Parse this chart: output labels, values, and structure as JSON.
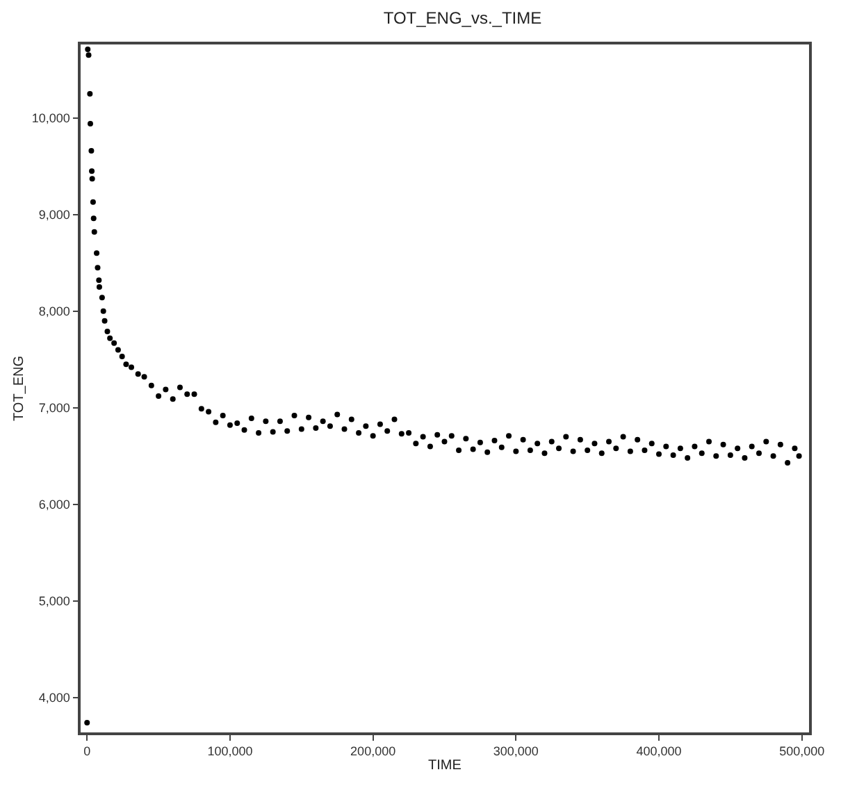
{
  "chart_data": {
    "type": "scatter",
    "title": "TOT_ENG_vs._TIME",
    "xlabel": "TIME",
    "ylabel": "TOT_ENG",
    "xlim": [
      -4500,
      505000
    ],
    "ylim": [
      3640,
      10760
    ],
    "xticks": [
      0,
      {
        "value": 100000,
        "label": "100,000"
      },
      {
        "value": 200000,
        "label": "200,000"
      },
      {
        "value": 300000,
        "label": "300,000"
      },
      {
        "value": 400000,
        "label": "400,000"
      },
      {
        "value": 500000,
        "label": "500,000"
      }
    ],
    "yticks": [
      {
        "value": 4000,
        "label": "4,000"
      },
      {
        "value": 5000,
        "label": "5,000"
      },
      {
        "value": 6000,
        "label": "6,000"
      },
      {
        "value": 7000,
        "label": "7,000"
      },
      {
        "value": 8000,
        "label": "8,000"
      },
      {
        "value": 9000,
        "label": "9,000"
      },
      {
        "value": 10000,
        "label": "10,000"
      }
    ],
    "marker": "circle",
    "series": [
      {
        "color": "#000000",
        "x": [
          0,
          500,
          1100,
          2000,
          2300,
          3000,
          3300,
          3600,
          4200,
          4600,
          5100,
          6700,
          7400,
          8300,
          8600,
          10500,
          11400,
          12300,
          14200,
          16000,
          18900,
          21700,
          24500,
          27300,
          31000,
          35700,
          40000,
          45000,
          50000,
          55000,
          60000,
          65000,
          70000,
          75000,
          80000,
          85000,
          90000,
          95000,
          100000,
          105000,
          110000,
          115000,
          120000,
          125000,
          130000,
          135000,
          140000,
          145000,
          150000,
          155000,
          160000,
          165000,
          170000,
          175000,
          180000,
          185000,
          190000,
          195000,
          200000,
          205000,
          210000,
          215000,
          220000,
          225000,
          230000,
          235000,
          240000,
          245000,
          250000,
          255000,
          260000,
          265000,
          270000,
          275000,
          280000,
          285000,
          290000,
          295000,
          300000,
          305000,
          310000,
          315000,
          320000,
          325000,
          330000,
          335000,
          340000,
          345000,
          350000,
          355000,
          360000,
          365000,
          370000,
          375000,
          380000,
          385000,
          390000,
          395000,
          400000,
          405000,
          410000,
          415000,
          420000,
          425000,
          430000,
          435000,
          440000,
          445000,
          450000,
          455000,
          460000,
          465000,
          470000,
          475000,
          480000,
          485000,
          490000,
          495000,
          498000
        ],
        "values": [
          3740,
          10710,
          10650,
          10250,
          9940,
          9660,
          9450,
          9370,
          9130,
          8960,
          8820,
          8600,
          8450,
          8320,
          8250,
          8140,
          8000,
          7900,
          7790,
          7720,
          7670,
          7600,
          7530,
          7450,
          7420,
          7350,
          7320,
          7230,
          7120,
          7190,
          7090,
          7210,
          7140,
          7140,
          6990,
          6960,
          6850,
          6920,
          6820,
          6840,
          6770,
          6890,
          6740,
          6860,
          6750,
          6860,
          6760,
          6920,
          6780,
          6900,
          6790,
          6860,
          6810,
          6930,
          6780,
          6880,
          6740,
          6810,
          6710,
          6830,
          6760,
          6880,
          6730,
          6740,
          6630,
          6700,
          6600,
          6720,
          6650,
          6710,
          6560,
          6680,
          6570,
          6640,
          6540,
          6660,
          6590,
          6710,
          6550,
          6670,
          6560,
          6630,
          6530,
          6650,
          6580,
          6700,
          6550,
          6670,
          6560,
          6630,
          6530,
          6650,
          6580,
          6700,
          6550,
          6670,
          6560,
          6630,
          6520,
          6600,
          6510,
          6580,
          6480,
          6600,
          6530,
          6650,
          6500,
          6620,
          6510,
          6580,
          6480,
          6600,
          6530,
          6650,
          6500,
          6620,
          6430,
          6580,
          6500
        ]
      }
    ]
  }
}
